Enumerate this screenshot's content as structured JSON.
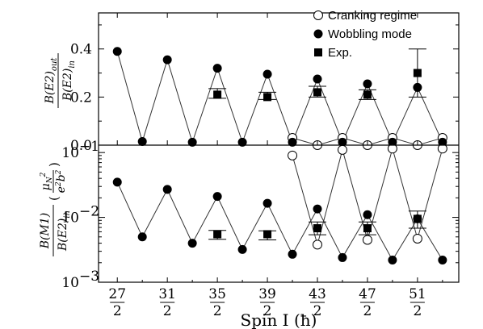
{
  "chart_data": [
    {
      "type": "line",
      "panel": "top",
      "ylabel_numerator": "B(E2)out",
      "ylabel_denominator": "B(E2)in",
      "ylim": [
        0,
        0.55
      ],
      "y_scale": "linear",
      "ytick_labels": [
        "0.0",
        "0.2",
        "0.4"
      ],
      "ytick_values": [
        0,
        0.2,
        0.4
      ],
      "x": [
        13.5,
        14.5,
        15.5,
        16.5,
        17.5,
        18.5,
        19.5,
        20.5,
        21.5,
        22.5,
        23.5,
        24.5,
        25.5,
        26.5
      ],
      "series": [
        {
          "name": "Cranking regime",
          "marker": "open-circle",
          "x": [
            20.5,
            21.5,
            22.5,
            23.5,
            24.5,
            25.5,
            26.5
          ],
          "values": [
            0.03,
            0.0,
            0.03,
            0.0,
            0.03,
            0.0,
            0.03
          ]
        },
        {
          "name": "Wobbling mode",
          "marker": "filled-circle",
          "values": [
            0.39,
            0.015,
            0.355,
            0.012,
            0.32,
            0.012,
            0.295,
            0.012,
            0.275,
            0.012,
            0.255,
            0.012,
            0.24,
            0.012
          ]
        },
        {
          "name": "Exp.",
          "marker": "filled-square",
          "x": [
            17.5,
            19.5,
            21.5,
            23.5,
            25.5
          ],
          "values": [
            0.21,
            0.2,
            0.22,
            0.21,
            0.3
          ],
          "err_low": [
            0.195,
            0.19,
            0.2,
            0.19,
            0.2
          ],
          "err_high": [
            0.235,
            0.22,
            0.245,
            0.23,
            0.4
          ]
        }
      ],
      "legend_position": "top-right"
    },
    {
      "type": "line",
      "panel": "bottom",
      "ylabel_numerator": "B(M1)",
      "ylabel_denominator": "B(E2)in",
      "ylabel_units_numerator": "μN²",
      "ylabel_units_denominator": "e²b²",
      "y_scale": "log",
      "ylim": [
        0.001,
        0.13
      ],
      "ytick_values": [
        0.001,
        0.01,
        0.1
      ],
      "x": [
        13.5,
        14.5,
        15.5,
        16.5,
        17.5,
        18.5,
        19.5,
        20.5,
        21.5,
        22.5,
        23.5,
        24.5,
        25.5,
        26.5
      ],
      "series": [
        {
          "name": "Cranking regime",
          "marker": "open-circle",
          "x": [
            20.5,
            21.5,
            22.5,
            23.5,
            24.5,
            25.5,
            26.5
          ],
          "values": [
            0.09,
            0.0038,
            0.11,
            0.0045,
            0.115,
            0.0047,
            0.115
          ]
        },
        {
          "name": "Wobbling mode",
          "marker": "filled-circle",
          "values": [
            0.035,
            0.005,
            0.027,
            0.004,
            0.021,
            0.0032,
            0.0165,
            0.0027,
            0.0135,
            0.0024,
            0.011,
            0.0022,
            0.0095,
            0.0022
          ]
        },
        {
          "name": "Exp.",
          "marker": "filled-square",
          "x": [
            17.5,
            19.5,
            21.5,
            23.5,
            25.5
          ],
          "values": [
            0.0055,
            0.0055,
            0.0068,
            0.0068,
            0.0095
          ],
          "err_low": [
            0.0046,
            0.0045,
            0.0054,
            0.0054,
            0.0068
          ],
          "err_high": [
            0.0063,
            0.0062,
            0.0085,
            0.0085,
            0.0125
          ]
        }
      ]
    }
  ],
  "xaxis": {
    "label": "Spin I (ħ)",
    "tick_values": [
      13.5,
      15.5,
      17.5,
      19.5,
      21.5,
      23.5,
      25.5
    ],
    "tick_numerators": [
      "27",
      "31",
      "35",
      "39",
      "43",
      "47",
      "51"
    ],
    "tick_denominator": "2"
  },
  "legend": [
    {
      "label": "Cranking regime",
      "icon": "open-circle-icon"
    },
    {
      "label": "Wobbling mode",
      "icon": "filled-circle-icon"
    },
    {
      "label": "Exp.",
      "icon": "filled-square-icon"
    }
  ],
  "ylabels": {
    "top_num": "B(E2)",
    "top_num_sub": "out",
    "top_den": "B(E2)",
    "top_den_sub": "in",
    "bot_num": "B(M1)",
    "bot_den": "B(E2)",
    "bot_den_sub": "in",
    "bot_unit_num": "μ",
    "bot_unit_num_sub": "N",
    "bot_unit_num_sup": "2",
    "bot_unit_den": "e",
    "bot_unit_den_sup": "2",
    "bot_unit_den2": "b",
    "bot_unit_den2_sup": "2"
  },
  "ytick_top": [
    "0.0",
    "0.2",
    "0.4"
  ],
  "ytick_bottom": [
    {
      "base": "10",
      "exp": "−3"
    },
    {
      "base": "10",
      "exp": "−2"
    },
    {
      "base": "10",
      "exp": "−1"
    }
  ]
}
